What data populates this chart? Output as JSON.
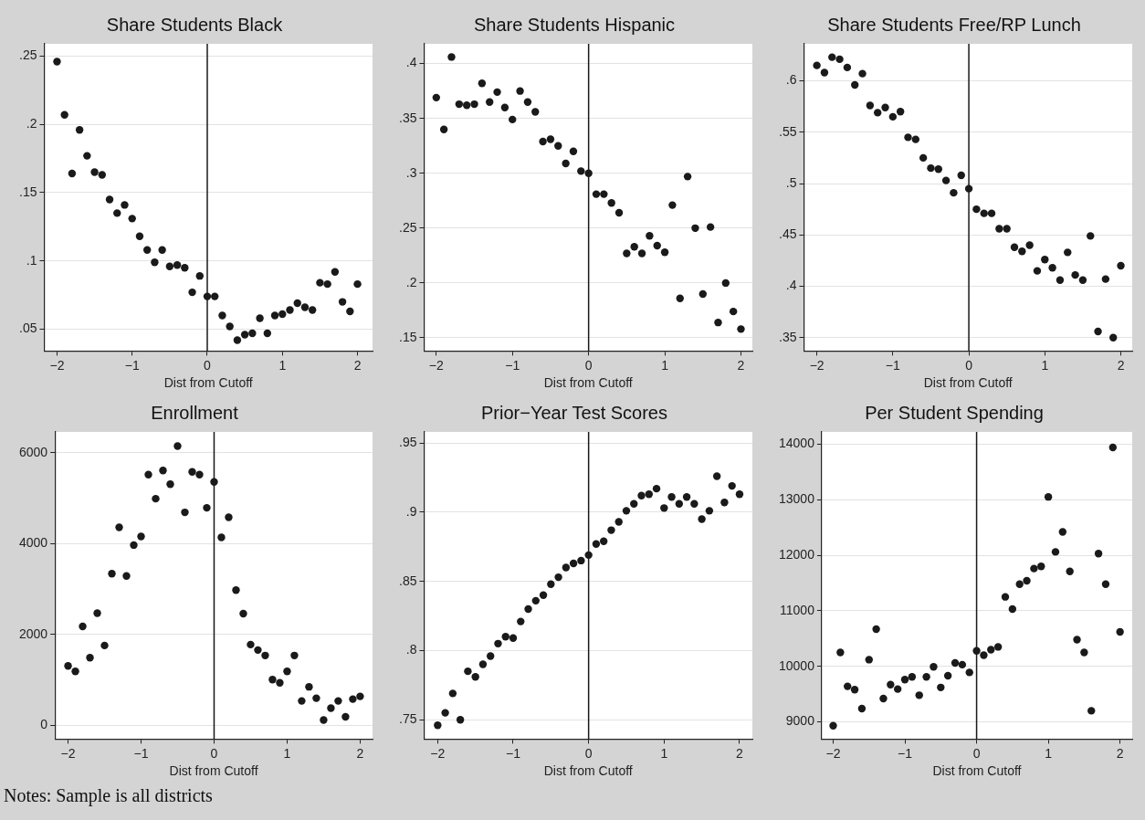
{
  "chart_data": [
    {
      "type": "scatter",
      "title": "Share Students Black",
      "xlabel": "Dist from Cutoff",
      "grid": "y",
      "marker": "circle",
      "legend": false,
      "x": [
        -2,
        -1.9,
        -1.8,
        -1.7,
        -1.6,
        -1.5,
        -1.4,
        -1.3,
        -1.2,
        -1.1,
        -1,
        -0.9,
        -0.8,
        -0.7,
        -0.6,
        -0.5,
        -0.4,
        -0.3,
        -0.2,
        -0.1,
        0,
        0.1,
        0.2,
        0.3,
        0.4,
        0.5,
        0.6,
        0.7,
        0.8,
        0.9,
        1,
        1.1,
        1.2,
        1.3,
        1.4,
        1.5,
        1.6,
        1.7,
        1.8,
        1.9,
        2
      ],
      "series": [
        {
          "color": "#1a1a1a",
          "values": [
            0.246,
            0.207,
            0.164,
            0.196,
            0.177,
            0.165,
            0.163,
            0.145,
            0.135,
            0.141,
            0.131,
            0.118,
            0.108,
            0.099,
            0.108,
            0.096,
            0.097,
            0.095,
            0.077,
            0.089,
            0.074,
            0.074,
            0.06,
            0.052,
            0.042,
            0.046,
            0.047,
            0.058,
            0.047,
            0.06,
            0.061,
            0.064,
            0.069,
            0.066,
            0.064,
            0.084,
            0.083,
            0.092,
            0.07,
            0.063,
            0.083
          ]
        }
      ],
      "xlim": [
        -2.17,
        2.2
      ],
      "xticks": [
        -2,
        -1,
        0,
        1,
        2
      ],
      "ylim": [
        0.034,
        0.259
      ],
      "yticks": [
        {
          "value": 0.05,
          "label": ".05"
        },
        {
          "value": 0.1,
          "label": ".1"
        },
        {
          "value": 0.15,
          "label": ".15"
        },
        {
          "value": 0.2,
          "label": ".2"
        },
        {
          "value": 0.25,
          "label": ".25"
        }
      ],
      "ref_lines": [
        {
          "axis": "x",
          "value": 0,
          "color": "#1a1a1a"
        }
      ]
    },
    {
      "type": "scatter",
      "title": "Share Students Hispanic",
      "xlabel": "Dist from Cutoff",
      "grid": "y",
      "marker": "circle",
      "legend": false,
      "x": [
        -2,
        -1.9,
        -1.8,
        -1.7,
        -1.6,
        -1.5,
        -1.4,
        -1.3,
        -1.2,
        -1.1,
        -1,
        -0.9,
        -0.8,
        -0.7,
        -0.6,
        -0.5,
        -0.4,
        -0.3,
        -0.2,
        -0.1,
        0,
        0.1,
        0.2,
        0.3,
        0.4,
        0.5,
        0.6,
        0.7,
        0.8,
        0.9,
        1,
        1.1,
        1.2,
        1.3,
        1.4,
        1.5,
        1.6,
        1.7,
        1.8,
        1.9,
        2
      ],
      "series": [
        {
          "color": "#1a1a1a",
          "values": [
            0.369,
            0.34,
            0.406,
            0.363,
            0.362,
            0.363,
            0.382,
            0.365,
            0.374,
            0.36,
            0.349,
            0.375,
            0.365,
            0.356,
            0.329,
            0.331,
            0.325,
            0.309,
            0.32,
            0.302,
            0.3,
            0.281,
            0.281,
            0.273,
            0.264,
            0.227,
            0.233,
            0.227,
            0.243,
            0.234,
            0.228,
            0.271,
            0.186,
            0.297,
            0.25,
            0.19,
            0.251,
            0.164,
            0.2,
            0.174,
            0.158
          ]
        }
      ],
      "xlim": [
        -2.16,
        2.15
      ],
      "xticks": [
        -2,
        -1,
        0,
        1,
        2
      ],
      "ylim": [
        0.138,
        0.418
      ],
      "yticks": [
        {
          "value": 0.15,
          "label": ".15"
        },
        {
          "value": 0.2,
          "label": ".2"
        },
        {
          "value": 0.25,
          "label": ".25"
        },
        {
          "value": 0.3,
          "label": ".3"
        },
        {
          "value": 0.35,
          "label": ".35"
        },
        {
          "value": 0.4,
          "label": ".4"
        }
      ],
      "ref_lines": [
        {
          "axis": "x",
          "value": 0,
          "color": "#1a1a1a"
        }
      ]
    },
    {
      "type": "scatter",
      "title": "Share Students Free/RP Lunch",
      "xlabel": "Dist from Cutoff",
      "grid": "y",
      "marker": "circle",
      "legend": false,
      "x": [
        -2,
        -1.9,
        -1.8,
        -1.7,
        -1.6,
        -1.5,
        -1.4,
        -1.3,
        -1.2,
        -1.1,
        -1,
        -0.9,
        -0.8,
        -0.7,
        -0.6,
        -0.5,
        -0.4,
        -0.3,
        -0.2,
        -0.1,
        0,
        0.1,
        0.2,
        0.3,
        0.4,
        0.5,
        0.6,
        0.7,
        0.8,
        0.9,
        1,
        1.1,
        1.2,
        1.3,
        1.4,
        1.5,
        1.6,
        1.7,
        1.8,
        1.9,
        2
      ],
      "series": [
        {
          "color": "#1a1a1a",
          "values": [
            0.615,
            0.608,
            0.623,
            0.621,
            0.613,
            0.596,
            0.607,
            0.576,
            0.569,
            0.574,
            0.565,
            0.57,
            0.545,
            0.543,
            0.525,
            0.515,
            0.514,
            0.503,
            0.491,
            0.508,
            0.495,
            0.475,
            0.471,
            0.471,
            0.456,
            0.456,
            0.438,
            0.434,
            0.44,
            0.415,
            0.426,
            0.418,
            0.406,
            0.433,
            0.411,
            0.406,
            0.449,
            0.356,
            0.407,
            0.35,
            0.42
          ]
        }
      ],
      "xlim": [
        -2.17,
        2.15
      ],
      "xticks": [
        -2,
        -1,
        0,
        1,
        2
      ],
      "ylim": [
        0.337,
        0.636
      ],
      "yticks": [
        {
          "value": 0.35,
          "label": ".35"
        },
        {
          "value": 0.4,
          "label": ".4"
        },
        {
          "value": 0.45,
          "label": ".45"
        },
        {
          "value": 0.5,
          "label": ".5"
        },
        {
          "value": 0.55,
          "label": ".55"
        },
        {
          "value": 0.6,
          "label": ".6"
        }
      ],
      "ref_lines": [
        {
          "axis": "x",
          "value": 0,
          "color": "#1a1a1a"
        }
      ]
    },
    {
      "type": "scatter",
      "title": "Enrollment",
      "xlabel": "Dist from Cutoff",
      "grid": "y",
      "marker": "circle",
      "legend": false,
      "x": [
        -2,
        -1.9,
        -1.8,
        -1.7,
        -1.6,
        -1.5,
        -1.4,
        -1.3,
        -1.2,
        -1.1,
        -1,
        -0.9,
        -0.8,
        -0.7,
        -0.6,
        -0.5,
        -0.4,
        -0.3,
        -0.2,
        -0.1,
        0,
        0.1,
        0.2,
        0.3,
        0.4,
        0.5,
        0.6,
        0.7,
        0.8,
        0.9,
        1,
        1.1,
        1.2,
        1.3,
        1.4,
        1.5,
        1.6,
        1.7,
        1.8,
        1.9,
        2
      ],
      "series": [
        {
          "color": "#1a1a1a",
          "values": [
            1310,
            1190,
            2180,
            1490,
            2470,
            1760,
            3340,
            4360,
            3290,
            3970,
            4160,
            5520,
            4990,
            5610,
            5310,
            6150,
            4690,
            5580,
            5520,
            4790,
            5360,
            4140,
            4580,
            2980,
            2460,
            1780,
            1660,
            1540,
            1010,
            940,
            1190,
            1540,
            540,
            850,
            600,
            120,
            380,
            540,
            190,
            580,
            640
          ]
        }
      ],
      "xlim": [
        -2.18,
        2.17
      ],
      "xticks": [
        -2,
        -1,
        0,
        1,
        2
      ],
      "ylim": [
        -300,
        6460
      ],
      "yticks": [
        0,
        2000,
        4000,
        6000
      ],
      "ref_lines": [
        {
          "axis": "x",
          "value": 0,
          "color": "#1a1a1a"
        }
      ],
      "annotations": [
        "Notes: Sample is all districts"
      ]
    },
    {
      "type": "scatter",
      "title": "Prior−Year Test Scores",
      "xlabel": "Dist from Cutoff",
      "grid": "y",
      "marker": "circle",
      "legend": false,
      "x": [
        -2,
        -1.9,
        -1.8,
        -1.7,
        -1.6,
        -1.5,
        -1.4,
        -1.3,
        -1.2,
        -1.1,
        -1,
        -0.9,
        -0.8,
        -0.7,
        -0.6,
        -0.5,
        -0.4,
        -0.3,
        -0.2,
        -0.1,
        0,
        0.1,
        0.2,
        0.3,
        0.4,
        0.5,
        0.6,
        0.7,
        0.8,
        0.9,
        1,
        1.1,
        1.2,
        1.3,
        1.4,
        1.5,
        1.6,
        1.7,
        1.8,
        1.9,
        2
      ],
      "series": [
        {
          "color": "#1a1a1a",
          "values": [
            0.746,
            0.755,
            0.769,
            0.75,
            0.785,
            0.781,
            0.79,
            0.796,
            0.805,
            0.81,
            0.809,
            0.821,
            0.83,
            0.836,
            0.84,
            0.848,
            0.853,
            0.86,
            0.863,
            0.865,
            0.869,
            0.877,
            0.879,
            0.887,
            0.893,
            0.901,
            0.906,
            0.912,
            0.913,
            0.917,
            0.903,
            0.911,
            0.906,
            0.911,
            0.906,
            0.895,
            0.901,
            0.926,
            0.907,
            0.919,
            0.913
          ]
        }
      ],
      "xlim": [
        -2.18,
        2.17
      ],
      "xticks": [
        -2,
        -1,
        0,
        1,
        2
      ],
      "ylim": [
        0.736,
        0.958
      ],
      "yticks": [
        {
          "value": 0.75,
          "label": ".75"
        },
        {
          "value": 0.8,
          "label": ".8"
        },
        {
          "value": 0.85,
          "label": ".85"
        },
        {
          "value": 0.9,
          "label": ".9"
        },
        {
          "value": 0.95,
          "label": ".95"
        }
      ],
      "ref_lines": [
        {
          "axis": "x",
          "value": 0,
          "color": "#1a1a1a"
        }
      ]
    },
    {
      "type": "scatter",
      "title": "Per Student Spending",
      "xlabel": "Dist from Cutoff",
      "grid": "y",
      "marker": "circle",
      "legend": false,
      "x": [
        -2,
        -1.9,
        -1.8,
        -1.7,
        -1.6,
        -1.5,
        -1.4,
        -1.3,
        -1.2,
        -1.1,
        -1,
        -0.9,
        -0.8,
        -0.7,
        -0.6,
        -0.5,
        -0.4,
        -0.3,
        -0.2,
        -0.1,
        0,
        0.1,
        0.2,
        0.3,
        0.4,
        0.5,
        0.6,
        0.7,
        0.8,
        0.9,
        1,
        1.1,
        1.2,
        1.3,
        1.4,
        1.5,
        1.6,
        1.7,
        1.8,
        1.9,
        2
      ],
      "series": [
        {
          "color": "#1a1a1a",
          "values": [
            8930,
            10250,
            9640,
            9580,
            9240,
            10120,
            10670,
            9420,
            9670,
            9590,
            9760,
            9810,
            9480,
            9810,
            9990,
            9620,
            9830,
            10060,
            10030,
            9890,
            10280,
            10200,
            10300,
            10350,
            11250,
            11030,
            11480,
            11540,
            11760,
            11800,
            13050,
            12060,
            12420,
            11710,
            10480,
            10250,
            9200,
            12030,
            11480,
            13940,
            10620
          ]
        }
      ],
      "xlim": [
        -2.16,
        2.17
      ],
      "xticks": [
        -2,
        -1,
        0,
        1,
        2
      ],
      "ylim": [
        8690,
        14220
      ],
      "yticks": [
        9000,
        10000,
        11000,
        12000,
        13000,
        14000
      ],
      "ref_lines": [
        {
          "axis": "x",
          "value": 0,
          "color": "#1a1a1a"
        }
      ]
    }
  ]
}
